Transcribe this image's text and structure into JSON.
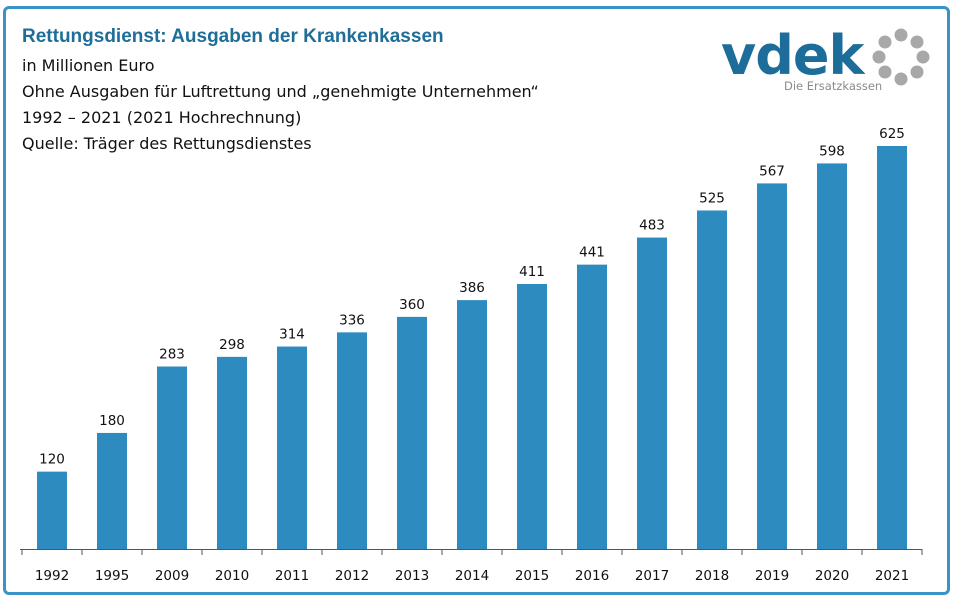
{
  "header": {
    "title": "Rettungsdienst: Ausgaben der Krankenkassen",
    "line1": "in Millionen Euro",
    "line2": "Ohne Ausgaben für Luftrettung und „genehmigte Unternehmen“",
    "line3": "1992 – 2021 (2021 Hochrechnung)",
    "line4": "Quelle: Träger des Rettungsdienstes"
  },
  "logo": {
    "wordmark": "vdek",
    "tagline": "Die Ersatzkassen"
  },
  "colors": {
    "bar": "#2e8bbf",
    "border": "#3a93c6",
    "title": "#1f6e99"
  },
  "chart_data": {
    "type": "bar",
    "title": "Rettungsdienst: Ausgaben der Krankenkassen",
    "ylabel": "in Millionen Euro",
    "xlabel": "",
    "categories": [
      "1992",
      "1995",
      "2009",
      "2010",
      "2011",
      "2012",
      "2013",
      "2014",
      "2015",
      "2016",
      "2017",
      "2018",
      "2019",
      "2020",
      "2021"
    ],
    "values": [
      120,
      180,
      283,
      298,
      314,
      336,
      360,
      386,
      411,
      441,
      483,
      525,
      567,
      598,
      625
    ],
    "ylim": [
      0,
      700
    ],
    "grid": false,
    "legend": "none"
  }
}
